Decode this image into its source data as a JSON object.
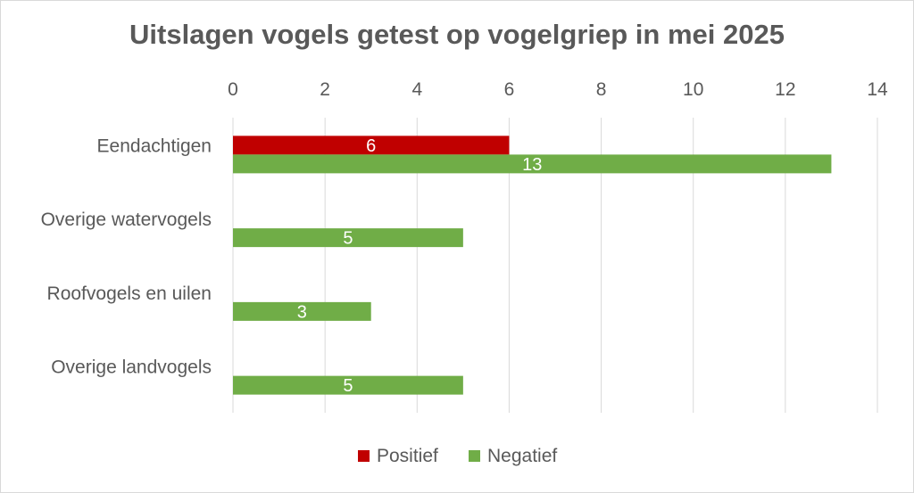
{
  "chart_data": {
    "type": "bar",
    "orientation": "horizontal",
    "title": "Uitslagen vogels getest op vogelgriep in mei 2025",
    "categories": [
      "Eendachtigen",
      "Overige watervogels",
      "Roofvogels en uilen",
      "Overige landvogels"
    ],
    "series": [
      {
        "name": "Positief",
        "values": [
          6,
          null,
          null,
          null
        ],
        "color": "#C00000"
      },
      {
        "name": "Negatief",
        "values": [
          13,
          5,
          3,
          5
        ],
        "color": "#70AD47"
      }
    ],
    "xlim": [
      0,
      14
    ],
    "x_ticks": [
      0,
      2,
      4,
      6,
      8,
      10,
      12,
      14
    ],
    "x_axis_position": "top",
    "grid": true,
    "data_labels": true,
    "legend": "bottom",
    "xlabel": "",
    "ylabel": ""
  }
}
